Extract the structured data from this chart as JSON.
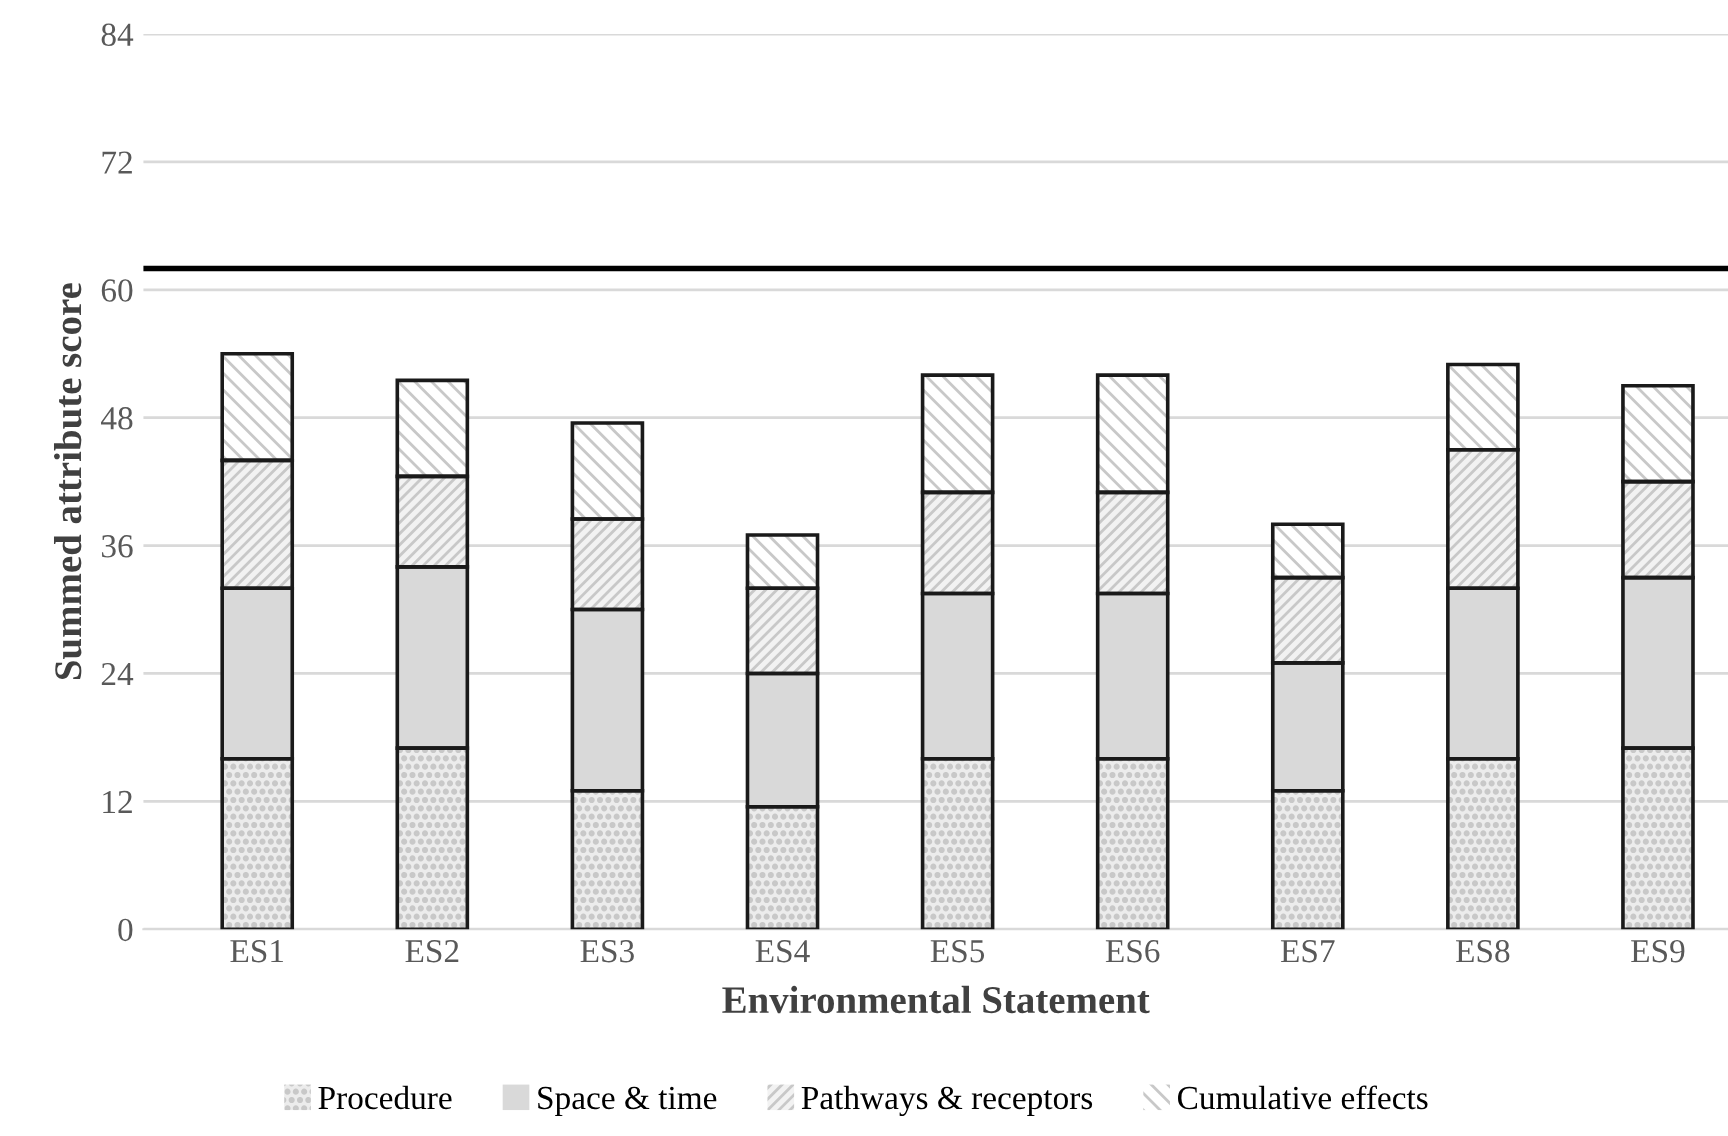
{
  "chart_data": {
    "type": "bar",
    "stacked": true,
    "xlabel": "Environmental Statement",
    "ylabel": "Summed attribute score",
    "categories": [
      "ES1",
      "ES2",
      "ES3",
      "ES4",
      "ES5",
      "ES6",
      "ES7",
      "ES8",
      "ES9"
    ],
    "series": [
      {
        "name": "Procedure",
        "color": "#ececec",
        "values": [
          16,
          17,
          13,
          11.5,
          16,
          16,
          13,
          16,
          17
        ]
      },
      {
        "name": "Space & time",
        "color": "#d9d9d9",
        "values": [
          16,
          17,
          17,
          12.5,
          15.5,
          15.5,
          12,
          16,
          16
        ]
      },
      {
        "name": "Pathways & receptors",
        "color": "#f2f2f2",
        "values": [
          12,
          8.5,
          8.5,
          8,
          9.5,
          9.5,
          8,
          13,
          9
        ]
      },
      {
        "name": "Cumulative effects",
        "color": "#ffffff",
        "values": [
          10,
          9,
          9,
          5,
          11,
          11,
          5,
          8,
          9
        ]
      }
    ],
    "ylim": [
      0,
      84
    ],
    "yticks": [
      0,
      12,
      24,
      36,
      48,
      60,
      72,
      84
    ],
    "grid": "y",
    "legend": "bottom",
    "ref_lines": [
      {
        "axis": "y",
        "value": 62,
        "color": "#000000",
        "line_style": "solid"
      }
    ]
  }
}
